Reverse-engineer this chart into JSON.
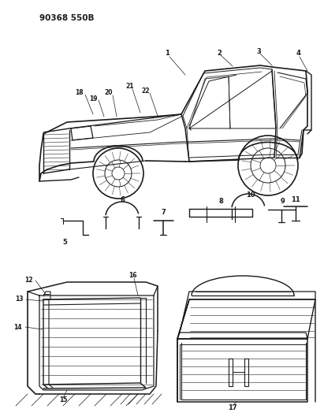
{
  "bg_color": "#ffffff",
  "text_color": "#1a1a1a",
  "header": "90368 550B",
  "fig_width": 4.11,
  "fig_height": 5.33,
  "dpi": 100
}
